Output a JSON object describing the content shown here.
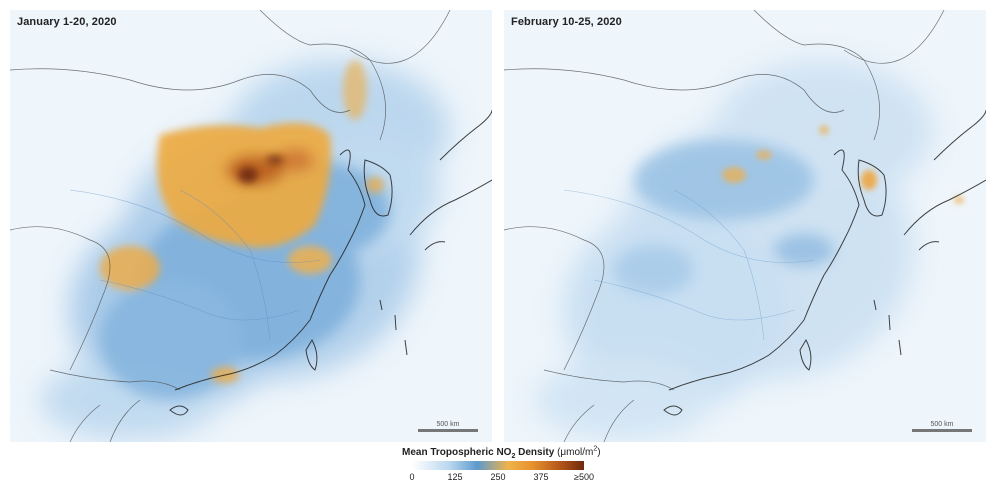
{
  "panels": {
    "left": {
      "title": "January 1-20, 2020",
      "scale_label": "500 km"
    },
    "right": {
      "title": "February 10-25, 2020",
      "scale_label": "500 km"
    }
  },
  "legend": {
    "title_main": "Mean Tropospheric NO",
    "title_sub": "2",
    "title_suffix": " Density ",
    "units_prefix": "(μmol/m",
    "units_sup": "2",
    "units_suffix": ")",
    "ticks": [
      "0",
      "125",
      "250",
      "375",
      "≥500"
    ]
  },
  "colors": {
    "background": "#eef5fb",
    "low": "#5e9acd",
    "mid": "#f0b24a",
    "high": "#6e2a0c"
  }
}
